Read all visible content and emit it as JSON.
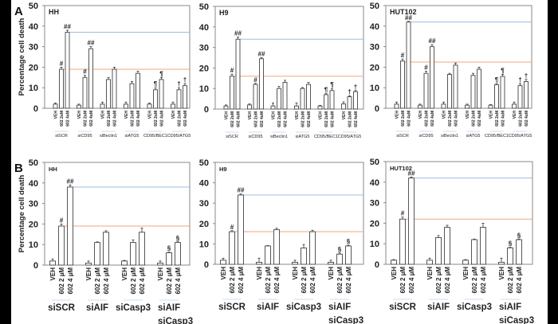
{
  "chart_data": [
    {
      "type": "bar",
      "panel": "A",
      "title": "HH",
      "ylabel": "Percentage cell death",
      "ylim": [
        0,
        50
      ],
      "yticks": [
        0,
        10,
        20,
        30,
        40,
        50
      ],
      "bar_labels": [
        "VEH",
        "602 2uM",
        "602 4uM"
      ],
      "groups": [
        {
          "name": [
            "siSCR"
          ],
          "values": [
            2,
            19,
            37
          ],
          "errors": [
            0.5,
            1,
            1
          ],
          "marks": [
            "",
            "#",
            "##"
          ]
        },
        {
          "name": [
            "siCD95"
          ],
          "values": [
            1.5,
            15,
            29
          ],
          "errors": [
            0.5,
            1,
            1
          ],
          "marks": [
            "",
            "#",
            "##"
          ]
        },
        {
          "name": [
            "siBeclin1"
          ],
          "values": [
            2,
            14,
            19
          ],
          "errors": [
            1,
            1,
            1
          ],
          "marks": [
            "",
            "",
            ""
          ]
        },
        {
          "name": [
            "siATG5"
          ],
          "values": [
            2,
            12,
            17
          ],
          "errors": [
            1,
            1,
            1
          ],
          "marks": [
            "",
            "",
            ""
          ]
        },
        {
          "name": [
            "CD95/BEC1"
          ],
          "values": [
            2,
            9,
            14
          ],
          "errors": [
            0.5,
            1,
            1
          ],
          "marks": [
            "",
            "¶",
            "¶"
          ]
        },
        {
          "name": [
            "CD95/ATG5"
          ],
          "values": [
            2,
            9,
            11
          ],
          "errors": [
            1,
            1,
            1
          ],
          "marks": [
            "",
            "†",
            "†"
          ]
        }
      ],
      "reference_lines": [
        {
          "value": 37,
          "color": "#9dbde3"
        },
        {
          "value": 19,
          "color": "#f2a77a"
        }
      ]
    },
    {
      "type": "bar",
      "panel": "",
      "title": "H9",
      "ylabel": "",
      "ylim": [
        0,
        50
      ],
      "yticks": [
        0,
        10,
        20,
        30,
        40,
        50
      ],
      "bar_labels": [
        "VEH",
        "602 2uM",
        "602 4uM"
      ],
      "groups": [
        {
          "name": [
            "siSCR"
          ],
          "values": [
            1.5,
            16,
            34
          ],
          "errors": [
            0.5,
            1,
            1
          ],
          "marks": [
            "",
            "#",
            "##"
          ]
        },
        {
          "name": [
            "siCD95"
          ],
          "values": [
            2,
            12,
            24.5
          ],
          "errors": [
            0.5,
            0.5,
            0.5
          ],
          "marks": [
            "",
            "#",
            "##"
          ]
        },
        {
          "name": [
            "siBeclin1"
          ],
          "values": [
            1.5,
            10,
            13
          ],
          "errors": [
            1.5,
            1,
            1
          ],
          "marks": [
            "",
            "",
            ""
          ]
        },
        {
          "name": [
            "siATG5"
          ],
          "values": [
            1.5,
            10,
            12
          ],
          "errors": [
            1.5,
            0.5,
            1
          ],
          "marks": [
            "",
            "",
            ""
          ]
        },
        {
          "name": [
            "CD95/BEC1"
          ],
          "values": [
            1.5,
            7,
            9
          ],
          "errors": [
            0.3,
            0.5,
            1
          ],
          "marks": [
            "",
            "¶",
            "¶"
          ]
        },
        {
          "name": [
            "CD95/ATG5"
          ],
          "values": [
            2.5,
            6,
            8.5
          ],
          "errors": [
            1,
            0.5,
            0.5
          ],
          "marks": [
            "",
            "†",
            "†"
          ]
        }
      ],
      "reference_lines": [
        {
          "value": 34,
          "color": "#9dbde3"
        },
        {
          "value": 16,
          "color": "#f2a77a"
        }
      ]
    },
    {
      "type": "bar",
      "panel": "",
      "title": "HUT102",
      "ylabel": "",
      "ylim": [
        0,
        50
      ],
      "yticks": [
        0,
        10,
        20,
        30,
        40,
        50
      ],
      "bar_labels": [
        "VEH",
        "602 2uM",
        "602 4uM"
      ],
      "groups": [
        {
          "name": [
            "siSCR"
          ],
          "values": [
            2,
            23,
            42
          ],
          "errors": [
            1,
            1,
            0.3
          ],
          "marks": [
            "",
            "#",
            "##"
          ]
        },
        {
          "name": [
            "siCD95"
          ],
          "values": [
            1.5,
            17,
            30
          ],
          "errors": [
            0.5,
            1,
            1
          ],
          "marks": [
            "",
            "#",
            "##"
          ]
        },
        {
          "name": [
            "siBeclin1"
          ],
          "values": [
            2,
            16.5,
            21
          ],
          "errors": [
            1,
            0.5,
            1
          ],
          "marks": [
            "",
            "",
            ""
          ]
        },
        {
          "name": [
            "siATG5"
          ],
          "values": [
            1.5,
            16,
            19
          ],
          "errors": [
            0.5,
            1,
            1
          ],
          "marks": [
            "",
            "",
            ""
          ]
        },
        {
          "name": [
            "CD95/BEC1"
          ],
          "values": [
            1.5,
            11.5,
            15.5
          ],
          "errors": [
            0.3,
            0.5,
            1
          ],
          "marks": [
            "",
            "¶",
            "¶"
          ]
        },
        {
          "name": [
            "CD95/ATG5"
          ],
          "values": [
            2,
            11,
            13
          ],
          "errors": [
            1,
            1,
            1
          ],
          "marks": [
            "",
            "†",
            "†"
          ]
        }
      ],
      "reference_lines": [
        {
          "value": 42,
          "color": "#9dbde3"
        },
        {
          "value": 22.5,
          "color": "#f2a77a"
        }
      ]
    },
    {
      "type": "bar",
      "panel": "B",
      "title": "HH",
      "ylabel": "Percentage cell death",
      "ylim": [
        0,
        50
      ],
      "yticks": [
        0,
        10,
        20,
        30,
        40,
        50
      ],
      "bar_labels": [
        "VEH",
        "602 2 µM",
        "602 4 µM"
      ],
      "groups": [
        {
          "name": [
            "siSCR"
          ],
          "values": [
            2,
            19,
            38
          ],
          "errors": [
            1,
            1,
            1
          ],
          "marks": [
            "",
            "#",
            "##"
          ]
        },
        {
          "name": [
            "siAIF"
          ],
          "values": [
            1,
            11,
            16
          ],
          "errors": [
            1,
            0.3,
            0.7
          ],
          "marks": [
            "",
            "",
            ""
          ]
        },
        {
          "name": [
            "siCasp3"
          ],
          "values": [
            2,
            11,
            16
          ],
          "errors": [
            0.3,
            1.3,
            2
          ],
          "marks": [
            "",
            "",
            ""
          ]
        },
        {
          "name": [
            "siAIF",
            "siCasp3"
          ],
          "values": [
            1,
            6,
            11
          ],
          "errors": [
            1,
            0.3,
            0.3
          ],
          "marks": [
            "",
            "§",
            "§"
          ]
        }
      ],
      "reference_lines": [
        {
          "value": 38,
          "color": "#9dbde3"
        },
        {
          "value": 19,
          "color": "#f2a77a"
        }
      ]
    },
    {
      "type": "bar",
      "panel": "",
      "title": "H9",
      "ylabel": "",
      "ylim": [
        0,
        50
      ],
      "yticks": [
        0,
        10,
        20,
        30,
        40,
        50
      ],
      "bar_labels": [
        "VEH",
        "602 2 µM",
        "602 4 µM"
      ],
      "groups": [
        {
          "name": [
            "siSCR"
          ],
          "values": [
            2,
            16,
            34
          ],
          "errors": [
            1,
            0.5,
            0.5
          ],
          "marks": [
            "",
            "#",
            "##"
          ]
        },
        {
          "name": [
            "siAIF"
          ],
          "values": [
            1,
            9,
            17
          ],
          "errors": [
            2,
            0.2,
            0.7
          ],
          "marks": [
            "",
            "",
            ""
          ]
        },
        {
          "name": [
            "siCasp3"
          ],
          "values": [
            1,
            8,
            16
          ],
          "errors": [
            1,
            1.7,
            0.7
          ],
          "marks": [
            "",
            "",
            ""
          ]
        },
        {
          "name": [
            "siAIF",
            "siCasp3"
          ],
          "values": [
            1,
            5,
            9
          ],
          "errors": [
            1,
            0.5,
            0.3
          ],
          "marks": [
            "",
            "§",
            "§"
          ]
        }
      ],
      "reference_lines": [
        {
          "value": 34,
          "color": "#9dbde3"
        },
        {
          "value": 16,
          "color": "#f2a77a"
        }
      ]
    },
    {
      "type": "bar",
      "panel": "",
      "title": "HUT102",
      "ylabel": "",
      "ylim": [
        0,
        50
      ],
      "yticks": [
        0,
        10,
        20,
        30,
        40,
        50
      ],
      "bar_labels": [
        "VEH",
        "602 2 µM",
        "602 4 µM"
      ],
      "groups": [
        {
          "name": [
            "siSCR"
          ],
          "values": [
            2,
            22,
            42
          ],
          "errors": [
            0.3,
            1,
            0.5
          ],
          "marks": [
            "",
            "#",
            "##"
          ]
        },
        {
          "name": [
            "siAIF"
          ],
          "values": [
            2,
            13,
            18
          ],
          "errors": [
            1,
            1,
            1
          ],
          "marks": [
            "",
            "",
            ""
          ]
        },
        {
          "name": [
            "siCasp3"
          ],
          "values": [
            2,
            12,
            18
          ],
          "errors": [
            0.3,
            0.3,
            2
          ],
          "marks": [
            "",
            "",
            ""
          ]
        },
        {
          "name": [
            "siAIF",
            "siCasp3"
          ],
          "values": [
            1,
            8,
            12
          ],
          "errors": [
            2,
            0.3,
            0.3
          ],
          "marks": [
            "",
            "§",
            "§"
          ]
        }
      ],
      "reference_lines": [
        {
          "value": 42,
          "color": "#9dbde3"
        },
        {
          "value": 22,
          "color": "#f2a77a"
        }
      ]
    }
  ]
}
